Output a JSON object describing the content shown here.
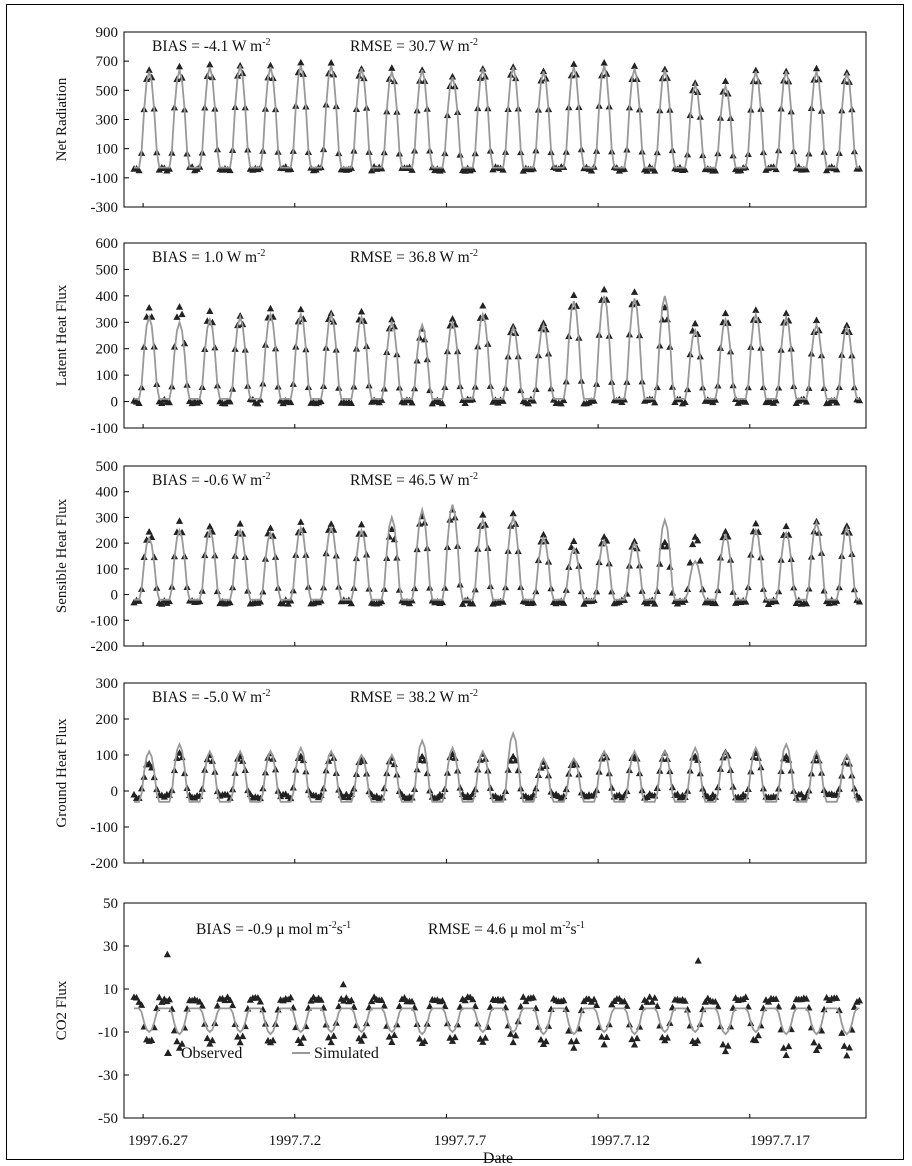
{
  "figure": {
    "xlabel": "Date",
    "x_ticks": [
      "1997.6.27",
      "1997.7.2",
      "1997.7.7",
      "1997.7.12",
      "1997.7.17"
    ],
    "legend": {
      "observed": "Observed",
      "simulated": "Simulated"
    },
    "colors": {
      "observed": "#222222",
      "simulated": "#999999",
      "axis": "#000000"
    }
  },
  "chart_data": [
    {
      "type": "scatter",
      "ylabel": "Net Radiation",
      "ylim": [
        -300,
        900
      ],
      "y_ticks": [
        900,
        700,
        500,
        300,
        100,
        -100,
        -300
      ],
      "stats": {
        "bias": "BIAS = -4.1 W m",
        "bias_sup": "-2",
        "rmse": "RMSE = 30.7 W m",
        "rmse_sup": "-2"
      },
      "series": [
        {
          "name": "Observed",
          "marker": "triangle",
          "day_peaks": [
            650,
            660,
            670,
            680,
            670,
            690,
            680,
            660,
            640,
            650,
            600,
            660,
            670,
            640,
            670,
            680,
            660,
            650,
            560,
            550,
            640,
            640,
            640,
            630
          ],
          "night_level": -40
        },
        {
          "name": "Simulated",
          "marker": "line",
          "day_peaks": [
            630,
            640,
            660,
            670,
            660,
            670,
            670,
            650,
            630,
            640,
            590,
            650,
            660,
            630,
            660,
            670,
            650,
            640,
            540,
            530,
            630,
            630,
            630,
            620
          ],
          "night_level": -30
        }
      ]
    },
    {
      "type": "scatter",
      "ylabel": "Latent Heat Flux",
      "ylim": [
        -100,
        600
      ],
      "y_ticks": [
        600,
        500,
        400,
        300,
        200,
        100,
        0,
        -100
      ],
      "stats": {
        "bias": "BIAS = 1.0 W m",
        "bias_sup": "-2",
        "rmse": "RMSE = 36.8 W m",
        "rmse_sup": "-2"
      },
      "series": [
        {
          "name": "Observed",
          "marker": "triangle",
          "day_peaks": [
            350,
            360,
            340,
            330,
            350,
            345,
            340,
            340,
            310,
            270,
            320,
            355,
            290,
            300,
            410,
            430,
            420,
            350,
            290,
            330,
            350,
            340,
            300,
            290
          ],
          "night_level": 0
        },
        {
          "name": "Simulated",
          "marker": "line",
          "day_peaks": [
            320,
            300,
            310,
            320,
            330,
            330,
            330,
            320,
            300,
            290,
            300,
            330,
            280,
            290,
            380,
            400,
            390,
            400,
            270,
            310,
            330,
            320,
            290,
            280
          ],
          "night_level": 10
        }
      ]
    },
    {
      "type": "scatter",
      "ylabel": "Sensible Heat Flux",
      "ylim": [
        -200,
        500
      ],
      "y_ticks": [
        500,
        400,
        300,
        200,
        100,
        0,
        -100,
        -200
      ],
      "stats": {
        "bias": "BIAS = -0.6 W m",
        "bias_sup": "-2",
        "rmse": "RMSE = 46.5 W m",
        "rmse_sup": "-2"
      },
      "series": [
        {
          "name": "Observed",
          "marker": "triangle",
          "day_peaks": [
            250,
            280,
            270,
            270,
            260,
            280,
            280,
            270,
            250,
            310,
            330,
            310,
            310,
            240,
            200,
            230,
            210,
            210,
            230,
            250,
            270,
            260,
            280,
            270
          ],
          "night_level": -30
        },
        {
          "name": "Simulated",
          "marker": "line",
          "day_peaks": [
            220,
            250,
            250,
            250,
            240,
            260,
            260,
            250,
            300,
            330,
            350,
            290,
            300,
            220,
            180,
            210,
            200,
            290,
            130,
            230,
            250,
            240,
            280,
            260
          ],
          "night_level": -20
        }
      ]
    },
    {
      "type": "scatter",
      "ylabel": "Ground Heat Flux",
      "ylim": [
        -200,
        300
      ],
      "y_ticks": [
        300,
        200,
        100,
        0,
        -100,
        -200
      ],
      "stats": {
        "bias": "BIAS = -5.0 W m",
        "bias_sup": "-2",
        "rmse": "RMSE = 38.2 W m",
        "rmse_sup": "-2"
      },
      "series": [
        {
          "name": "Observed",
          "marker": "triangle",
          "day_peaks": [
            80,
            100,
            100,
            100,
            100,
            100,
            100,
            90,
            90,
            100,
            100,
            100,
            100,
            80,
            80,
            100,
            100,
            100,
            100,
            110,
            110,
            100,
            100,
            90
          ],
          "night_level": -15
        },
        {
          "name": "Simulated",
          "marker": "line",
          "day_peaks": [
            110,
            130,
            110,
            110,
            110,
            120,
            110,
            100,
            100,
            140,
            120,
            110,
            160,
            90,
            90,
            110,
            110,
            110,
            120,
            110,
            120,
            130,
            110,
            100
          ],
          "night_level": -30
        }
      ]
    },
    {
      "type": "scatter",
      "ylabel": "CO2  Flux",
      "ylim": [
        -50,
        50
      ],
      "y_ticks": [
        50,
        30,
        10,
        -10,
        -30,
        -50
      ],
      "stats": {
        "bias": "BIAS = -0.9 μ mol m",
        "bias_sup": "-2",
        "bias_sup2": "s",
        "bias_sup3": "-1",
        "rmse": "RMSE = 4.6 μ mol m",
        "rmse_sup": "-2",
        "rmse_sup2": "s",
        "rmse_sup3": "-1"
      },
      "series": [
        {
          "name": "Observed",
          "marker": "triangle",
          "day_troughs": [
            -15,
            -18,
            -15,
            -14,
            -16,
            -15,
            -14,
            -15,
            -14,
            -16,
            -14,
            -15,
            -14,
            -16,
            -18,
            -15,
            -16,
            -14,
            -16,
            -18,
            -15,
            -20,
            -18,
            -20
          ],
          "night_level": 5,
          "outliers": [
            [
              1.1,
              26
            ],
            [
              6.9,
              12
            ],
            [
              18.6,
              23
            ]
          ]
        },
        {
          "name": "Simulated",
          "marker": "line",
          "day_troughs": [
            -10,
            -11,
            -10,
            -10,
            -11,
            -10,
            -10,
            -10,
            -10,
            -11,
            -10,
            -10,
            -10,
            -11,
            -11,
            -10,
            -11,
            -10,
            -10,
            -11,
            -10,
            -11,
            -11,
            -11
          ],
          "night_level": 1
        }
      ]
    }
  ]
}
